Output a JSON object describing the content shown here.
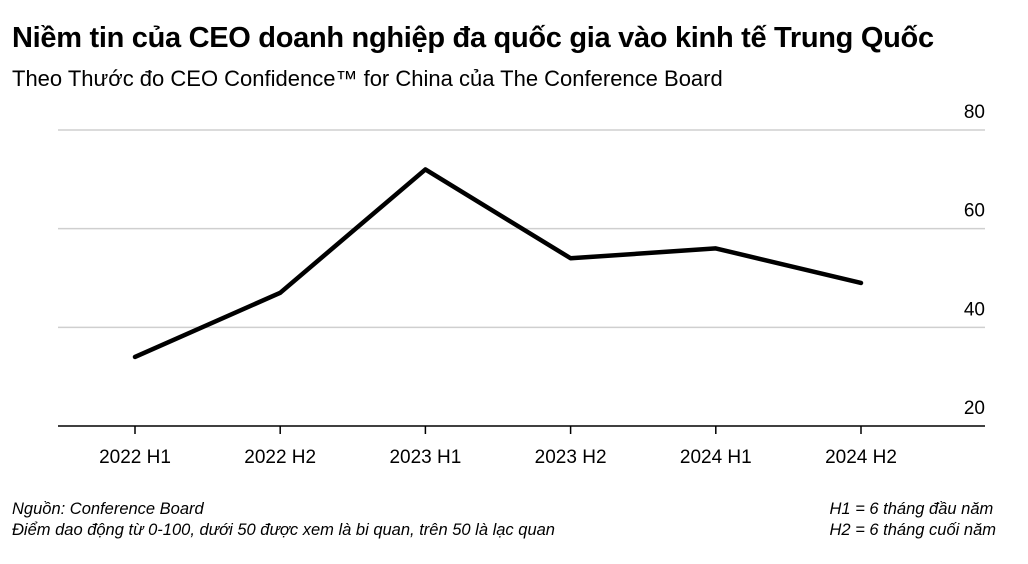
{
  "title": "Niềm tin của CEO doanh nghiệp đa quốc gia vào kinh tế Trung Quốc",
  "subtitle": "Theo Thước đo CEO Confidence™ for China của The Conference Board",
  "footer": {
    "source": "Nguồn: Conference Board",
    "note": "Điểm dao động từ 0-100, dưới 50 được xem là bi quan, trên 50 là lạc quan",
    "h1_note": "H1 = 6 tháng đầu năm",
    "h2_note": "H2 = 6 tháng cuối năm"
  },
  "colors": {
    "line": "#000000",
    "grid": "#cfcfcf",
    "axis": "#000000"
  },
  "chart_data": {
    "type": "line",
    "title": "Niềm tin của CEO doanh nghiệp đa quốc gia vào kinh tế Trung Quốc",
    "subtitle": "Theo Thước đo CEO Confidence™ for China của The Conference Board",
    "categories": [
      "2022 H1",
      "2022 H2",
      "2023 H1",
      "2023 H2",
      "2024 H1",
      "2024 H2"
    ],
    "series": [
      {
        "values": [
          34,
          47,
          72,
          54,
          56,
          49
        ]
      }
    ],
    "ylim": [
      20,
      80
    ],
    "yticks": [
      20,
      40,
      60,
      80
    ],
    "yaxis_side": "right",
    "grid": true,
    "xlabel": "",
    "ylabel": ""
  }
}
